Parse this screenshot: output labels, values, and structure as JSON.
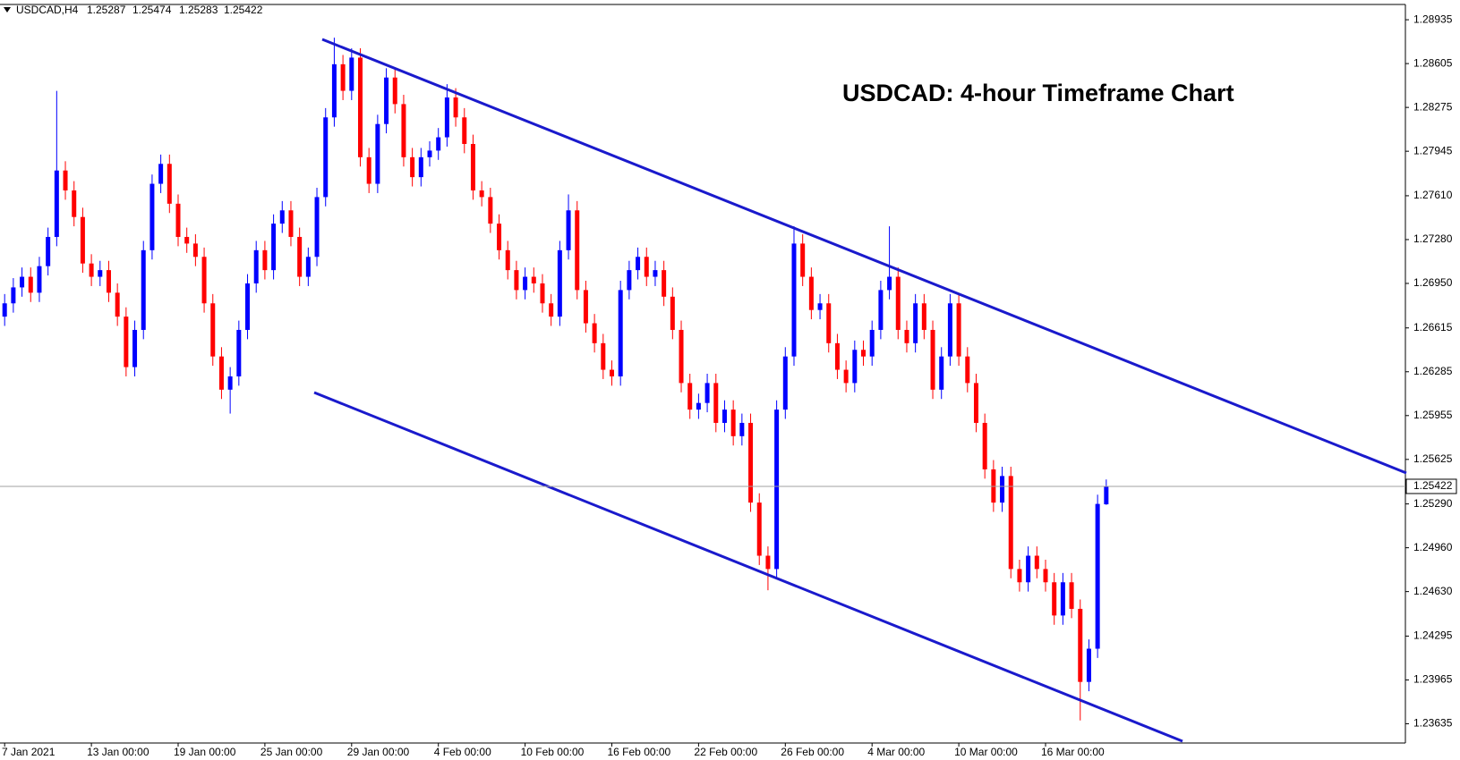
{
  "chart_data": {
    "type": "candlestick",
    "title": "USDCAD: 4-hour Timeframe Chart",
    "symbol": "USDCAD,H4",
    "up_color": "#0000ff",
    "down_color": "#ff0000",
    "ylim": [
      1.2349,
      1.2905
    ],
    "yticks": [
      1.28935,
      1.28605,
      1.28275,
      1.27945,
      {
        "value": 1.2761,
        "label": "1.27610"
      },
      {
        "value": 1.2728,
        "label": "1.27280"
      },
      {
        "value": 1.2695,
        "label": "1.26950"
      },
      1.26615,
      1.26285,
      1.25955,
      1.25625,
      {
        "value": 1.2529,
        "label": "1.25290"
      },
      {
        "value": 1.2496,
        "label": "1.24960"
      },
      {
        "value": 1.2463,
        "label": "1.24630"
      },
      1.24295,
      1.23965,
      1.23635
    ],
    "categories": [
      "7 Jan 2021",
      null,
      null,
      null,
      null,
      null,
      null,
      null,
      null,
      null,
      "13 Jan 00:00",
      null,
      null,
      null,
      null,
      null,
      null,
      null,
      null,
      null,
      "19 Jan 00:00",
      null,
      null,
      null,
      null,
      null,
      null,
      null,
      null,
      null,
      "25 Jan 00:00",
      null,
      null,
      null,
      null,
      null,
      null,
      null,
      null,
      null,
      "29 Jan 00:00",
      null,
      null,
      null,
      null,
      null,
      null,
      null,
      null,
      null,
      "4 Feb 00:00",
      null,
      null,
      null,
      null,
      null,
      null,
      null,
      null,
      null,
      "10 Feb 00:00",
      null,
      null,
      null,
      null,
      null,
      null,
      null,
      null,
      null,
      "16 Feb 00:00",
      null,
      null,
      null,
      null,
      null,
      null,
      null,
      null,
      null,
      "22 Feb 00:00",
      null,
      null,
      null,
      null,
      null,
      null,
      null,
      null,
      null,
      "26 Feb 00:00",
      null,
      null,
      null,
      null,
      null,
      null,
      null,
      null,
      null,
      "4 Mar 00:00",
      null,
      null,
      null,
      null,
      null,
      null,
      null,
      null,
      null,
      "10 Mar 00:00",
      null,
      null,
      null,
      null,
      null,
      null,
      null,
      null,
      null,
      "16 Mar 00:00",
      null,
      null,
      null,
      null,
      null,
      null,
      null
    ],
    "open": [
      1.267,
      1.268,
      1.2692,
      1.27,
      1.2688,
      1.2708,
      1.273,
      1.278,
      1.2765,
      1.2745,
      1.271,
      1.27,
      1.2705,
      1.2688,
      1.267,
      1.2632,
      1.266,
      1.272,
      1.277,
      1.2785,
      1.2755,
      1.273,
      1.2725,
      1.2715,
      1.268,
      1.264,
      1.2615,
      1.2625,
      1.266,
      1.2695,
      1.272,
      1.2705,
      1.274,
      1.275,
      1.273,
      1.27,
      1.2715,
      1.276,
      1.282,
      1.286,
      1.284,
      1.2865,
      1.279,
      1.277,
      1.2815,
      1.285,
      1.283,
      1.279,
      1.2775,
      1.279,
      1.2795,
      1.2805,
      1.2835,
      1.282,
      1.28,
      1.2765,
      1.276,
      1.274,
      1.272,
      1.2705,
      1.269,
      1.27,
      1.2695,
      1.268,
      1.267,
      1.272,
      1.275,
      1.269,
      1.2665,
      1.265,
      1.263,
      1.2625,
      1.269,
      1.2705,
      1.2715,
      1.27,
      1.2705,
      1.2685,
      1.266,
      1.262,
      1.26,
      1.2605,
      1.262,
      1.259,
      1.26,
      1.258,
      1.259,
      1.253,
      1.249,
      1.248,
      1.26,
      1.264,
      1.2725,
      1.27,
      1.2675,
      1.268,
      1.265,
      1.263,
      1.262,
      1.2645,
      1.264,
      1.266,
      1.269,
      1.27,
      1.266,
      1.265,
      1.268,
      1.266,
      1.2615,
      1.264,
      1.268,
      1.264,
      1.262,
      1.259,
      1.2555,
      1.253,
      1.255,
      1.248,
      1.247,
      1.249,
      1.248,
      1.247,
      1.2445,
      1.247,
      1.245,
      1.2395,
      1.242,
      1.25287
    ],
    "high": [
      1.2687,
      1.2699,
      1.2707,
      1.2707,
      1.2715,
      1.2737,
      1.284,
      1.2787,
      1.2772,
      1.2752,
      1.2717,
      1.2712,
      1.2712,
      1.2695,
      1.2677,
      1.2667,
      1.2727,
      1.2777,
      1.2792,
      1.2792,
      1.2762,
      1.2737,
      1.2732,
      1.2722,
      1.2687,
      1.2647,
      1.2632,
      1.2667,
      1.2702,
      1.2727,
      1.2727,
      1.2747,
      1.2757,
      1.2757,
      1.2737,
      1.2722,
      1.2767,
      1.2827,
      1.288,
      1.2867,
      1.2872,
      1.2872,
      1.2797,
      1.2822,
      1.2857,
      1.2857,
      1.2837,
      1.2797,
      1.2797,
      1.2802,
      1.2812,
      1.2845,
      1.2842,
      1.2827,
      1.2807,
      1.2772,
      1.2767,
      1.2747,
      1.2727,
      1.2712,
      1.2707,
      1.2707,
      1.2702,
      1.2687,
      1.2727,
      1.2762,
      1.2757,
      1.2697,
      1.2672,
      1.2657,
      1.2637,
      1.2697,
      1.2712,
      1.2722,
      1.2722,
      1.2712,
      1.2712,
      1.2692,
      1.2667,
      1.2627,
      1.2612,
      1.2627,
      1.2627,
      1.2607,
      1.2607,
      1.2597,
      1.2597,
      1.2537,
      1.2497,
      1.2607,
      1.2647,
      1.2738,
      1.2732,
      1.2707,
      1.2687,
      1.2687,
      1.2657,
      1.2637,
      1.2652,
      1.2652,
      1.2667,
      1.2697,
      1.2738,
      1.2707,
      1.2667,
      1.2687,
      1.2687,
      1.2667,
      1.2647,
      1.2687,
      1.2687,
      1.2647,
      1.2627,
      1.2597,
      1.2562,
      1.2557,
      1.2557,
      1.2487,
      1.2497,
      1.2497,
      1.2487,
      1.2477,
      1.2477,
      1.2477,
      1.2457,
      1.2427,
      1.2536,
      1.25474
    ],
    "low": [
      1.2663,
      1.2673,
      1.2685,
      1.2681,
      1.2681,
      1.2701,
      1.2723,
      1.2758,
      1.2738,
      1.2703,
      1.2693,
      1.2693,
      1.2681,
      1.2663,
      1.2625,
      1.2625,
      1.2653,
      1.2713,
      1.2763,
      1.2748,
      1.2723,
      1.2718,
      1.2708,
      1.2673,
      1.2633,
      1.2608,
      1.2597,
      1.2618,
      1.2653,
      1.2688,
      1.2698,
      1.2698,
      1.2733,
      1.2723,
      1.2693,
      1.2693,
      1.2708,
      1.2753,
      1.2813,
      1.2833,
      1.2833,
      1.2783,
      1.2763,
      1.2763,
      1.2808,
      1.2823,
      1.2783,
      1.2768,
      1.2768,
      1.2783,
      1.2788,
      1.2798,
      1.2813,
      1.2793,
      1.2758,
      1.2753,
      1.2733,
      1.2713,
      1.2698,
      1.2683,
      1.2683,
      1.2688,
      1.2673,
      1.2663,
      1.2663,
      1.2713,
      1.2683,
      1.2658,
      1.2643,
      1.2623,
      1.2618,
      1.2618,
      1.2683,
      1.2698,
      1.2693,
      1.2693,
      1.2678,
      1.2653,
      1.2613,
      1.2593,
      1.2593,
      1.2598,
      1.2583,
      1.2583,
      1.2573,
      1.2573,
      1.2523,
      1.2483,
      1.2464,
      1.2473,
      1.2593,
      1.2633,
      1.2693,
      1.2668,
      1.2668,
      1.2643,
      1.2623,
      1.2613,
      1.2613,
      1.2633,
      1.2633,
      1.2653,
      1.2683,
      1.2653,
      1.2643,
      1.2643,
      1.2653,
      1.2608,
      1.2608,
      1.2633,
      1.2633,
      1.2613,
      1.2583,
      1.2548,
      1.2523,
      1.2523,
      1.2473,
      1.2463,
      1.2463,
      1.2473,
      1.2463,
      1.2438,
      1.2438,
      1.2443,
      1.2366,
      1.2388,
      1.2413,
      1.25283
    ],
    "close": [
      1.268,
      1.2692,
      1.27,
      1.2688,
      1.2708,
      1.273,
      1.278,
      1.2765,
      1.2745,
      1.271,
      1.27,
      1.2705,
      1.2688,
      1.267,
      1.2632,
      1.266,
      1.272,
      1.277,
      1.2785,
      1.2755,
      1.273,
      1.2725,
      1.2715,
      1.268,
      1.264,
      1.2615,
      1.2625,
      1.266,
      1.2695,
      1.272,
      1.2705,
      1.274,
      1.275,
      1.273,
      1.27,
      1.2715,
      1.276,
      1.282,
      1.286,
      1.284,
      1.2865,
      1.279,
      1.277,
      1.2815,
      1.285,
      1.283,
      1.279,
      1.2775,
      1.279,
      1.2795,
      1.2805,
      1.2835,
      1.282,
      1.28,
      1.2765,
      1.276,
      1.274,
      1.272,
      1.2705,
      1.269,
      1.27,
      1.2695,
      1.268,
      1.267,
      1.272,
      1.275,
      1.269,
      1.2665,
      1.265,
      1.263,
      1.2625,
      1.269,
      1.2705,
      1.2715,
      1.27,
      1.2705,
      1.2685,
      1.266,
      1.262,
      1.26,
      1.2605,
      1.262,
      1.259,
      1.26,
      1.258,
      1.259,
      1.253,
      1.249,
      1.248,
      1.26,
      1.264,
      1.2725,
      1.27,
      1.2675,
      1.268,
      1.265,
      1.263,
      1.262,
      1.2645,
      1.264,
      1.266,
      1.269,
      1.27,
      1.266,
      1.265,
      1.268,
      1.266,
      1.2615,
      1.264,
      1.268,
      1.264,
      1.262,
      1.259,
      1.2555,
      1.253,
      1.255,
      1.248,
      1.247,
      1.249,
      1.248,
      1.247,
      1.2445,
      1.247,
      1.245,
      1.2395,
      1.242,
      1.2529,
      1.25422
    ]
  }
}
